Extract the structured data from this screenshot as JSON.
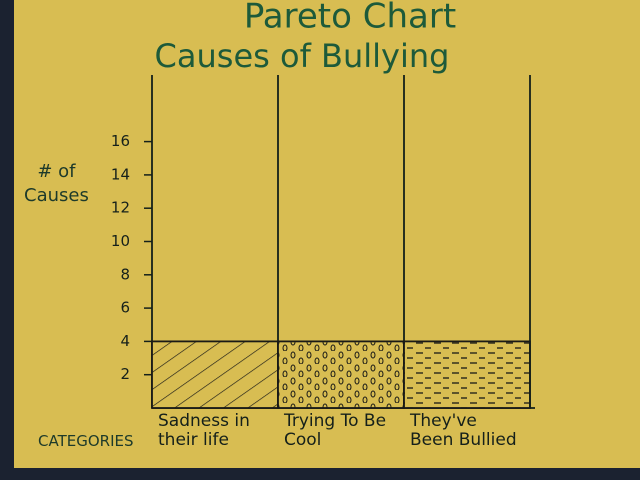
{
  "chart_data": {
    "type": "bar",
    "title": "Pareto Chart",
    "subtitle": "Causes of Bullying",
    "y_label": "# of Causes",
    "x_label": "CATEGORIES",
    "categories": [
      "Sadness in their life",
      "Trying To Be Cool",
      "They've Been Bullied"
    ],
    "values": [
      4,
      4,
      4
    ],
    "color": "#1a1a16",
    "ylim": [
      0,
      20
    ],
    "yticks": [
      2,
      4,
      6,
      8,
      10,
      12,
      14,
      16
    ],
    "grid": false
  }
}
